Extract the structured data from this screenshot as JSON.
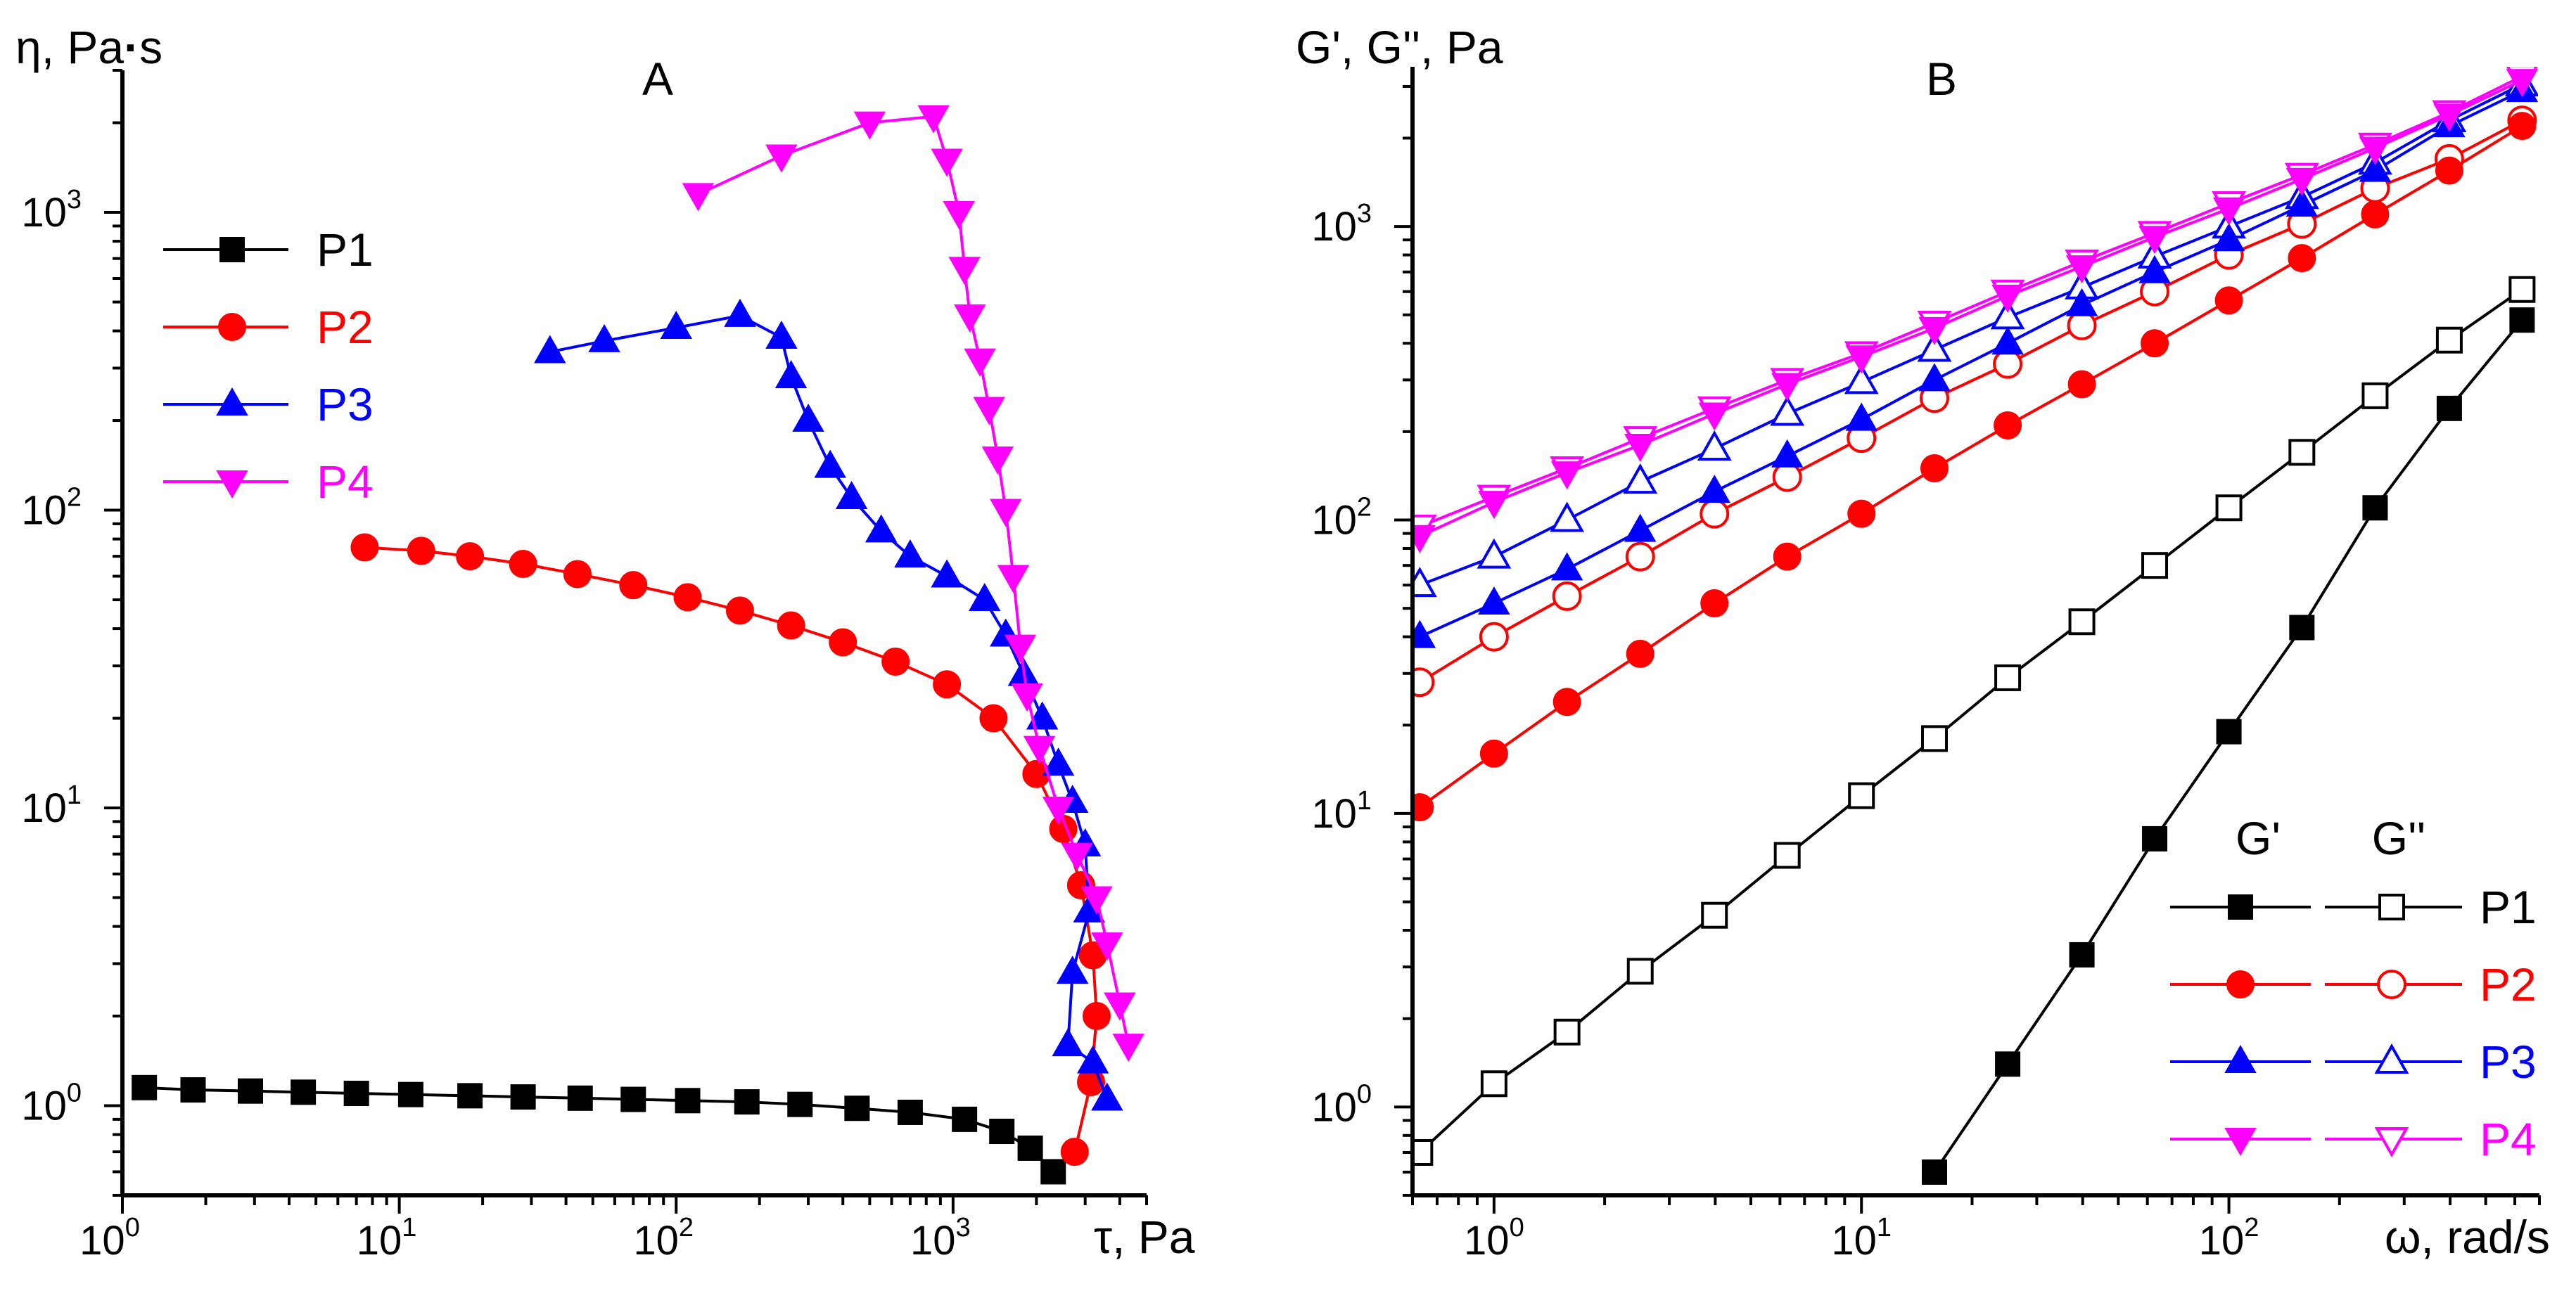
{
  "chart_data": [
    {
      "panel": "A",
      "type": "line",
      "xscale": "log",
      "yscale": "log",
      "xlabel": "τ, Pa",
      "ylabel": "η, Pa·s",
      "xlim": [
        1,
        5000
      ],
      "ylim": [
        0.5,
        3000
      ],
      "xtick_labels": [
        {
          "base": "10",
          "exp": "0"
        },
        {
          "base": "10",
          "exp": "1"
        },
        {
          "base": "10",
          "exp": "2"
        },
        {
          "base": "10",
          "exp": "3"
        }
      ],
      "ytick_labels": [
        {
          "base": "10",
          "exp": "0"
        },
        {
          "base": "10",
          "exp": "1"
        },
        {
          "base": "10",
          "exp": "2"
        },
        {
          "base": "10",
          "exp": "3"
        }
      ],
      "legend_position": "upper-left",
      "series": [
        {
          "name": "P1",
          "color": "#000000",
          "marker": "square",
          "x": [
            1.2,
            1.8,
            2.9,
            4.5,
            7,
            11,
            18,
            28,
            45,
            70,
            110,
            180,
            280,
            450,
            700,
            1100,
            1500,
            1900,
            2300
          ],
          "y": [
            1.15,
            1.13,
            1.12,
            1.11,
            1.1,
            1.09,
            1.08,
            1.07,
            1.06,
            1.05,
            1.04,
            1.03,
            1.01,
            0.98,
            0.95,
            0.9,
            0.82,
            0.72,
            0.6
          ]
        },
        {
          "name": "P2",
          "color": "#ff0000",
          "marker": "circle",
          "x": [
            7.5,
            12,
            18,
            28,
            44,
            70,
            110,
            170,
            260,
            400,
            620,
            950,
            1400,
            2000,
            2500,
            2900,
            3200,
            3300,
            3150,
            2750
          ],
          "y": [
            75,
            73,
            70,
            66,
            61,
            56,
            51,
            46,
            41,
            36,
            31,
            26,
            20,
            13,
            8.5,
            5.5,
            3.2,
            2.0,
            1.2,
            0.7
          ]
        },
        {
          "name": "P3",
          "color": "#0000ff",
          "marker": "triangle-up",
          "x": [
            35,
            55,
            100,
            170,
            240,
            260,
            300,
            360,
            430,
            550,
            700,
            950,
            1300,
            1550,
            1800,
            2100,
            2400,
            2700,
            3000,
            3100,
            2700,
            2600,
            3200,
            3600
          ],
          "y": [
            340,
            370,
            410,
            450,
            380,
            280,
            200,
            140,
            110,
            85,
            70,
            60,
            50,
            38,
            28,
            20,
            14,
            10.5,
            7.5,
            4.5,
            2.8,
            1.6,
            1.4,
            1.05
          ]
        },
        {
          "name": "P4",
          "color": "#ff00ff",
          "marker": "triangle-down",
          "x": [
            120,
            240,
            500,
            850,
            950,
            1050,
            1100,
            1150,
            1250,
            1350,
            1450,
            1550,
            1650,
            1750,
            1850,
            2050,
            2400,
            2800,
            3300,
            3600,
            4000,
            4300
          ],
          "y": [
            1150,
            1550,
            2000,
            2100,
            1500,
            1000,
            650,
            450,
            320,
            220,
            150,
            100,
            60,
            35,
            24,
            16,
            10,
            7,
            5,
            3.5,
            2.2,
            1.6
          ]
        }
      ]
    },
    {
      "panel": "B",
      "type": "line",
      "xscale": "log",
      "yscale": "log",
      "xlabel": "ω, rad/s",
      "ylabel": "G', G'', Pa",
      "xlim": [
        0.6,
        700
      ],
      "ylim": [
        0.5,
        3500
      ],
      "xtick_labels": [
        {
          "base": "10",
          "exp": "0"
        },
        {
          "base": "10",
          "exp": "1"
        },
        {
          "base": "10",
          "exp": "2"
        }
      ],
      "ytick_labels": [
        {
          "base": "10",
          "exp": "0"
        },
        {
          "base": "10",
          "exp": "1"
        },
        {
          "base": "10",
          "exp": "2"
        },
        {
          "base": "10",
          "exp": "3"
        }
      ],
      "x": [
        0.628,
        1.0,
        1.58,
        2.5,
        3.98,
        6.28,
        10,
        15.8,
        25,
        39.8,
        62.8,
        100,
        158,
        250,
        398,
        628
      ],
      "legend_position": "lower-right",
      "legend_headers": [
        "G'",
        "G''"
      ],
      "series": [
        {
          "name": "P1",
          "color": "#000000",
          "marker": "square",
          "G_prime": [
            null,
            null,
            null,
            null,
            null,
            null,
            null,
            0.6,
            1.4,
            3.3,
            8.2,
            19,
            43,
            110,
            240,
            480
          ],
          "G_double_prime": [
            0.7,
            1.2,
            1.8,
            2.9,
            4.5,
            7.2,
            11.5,
            18,
            29,
            45,
            70,
            110,
            170,
            265,
            410,
            610
          ]
        },
        {
          "name": "P2",
          "color": "#ff0000",
          "marker": "circle",
          "G_prime": [
            10.5,
            16,
            24,
            35,
            52,
            75,
            105,
            150,
            210,
            290,
            400,
            560,
            780,
            1100,
            1550,
            2200
          ],
          "G_double_prime": [
            28,
            40,
            55,
            75,
            105,
            140,
            190,
            260,
            340,
            460,
            600,
            800,
            1020,
            1350,
            1700,
            2300
          ]
        },
        {
          "name": "P3",
          "color": "#0000ff",
          "marker": "triangle-up",
          "G_prime": [
            40,
            52,
            68,
            92,
            125,
            165,
            220,
            300,
            400,
            540,
            700,
            900,
            1180,
            1550,
            2200,
            2900
          ],
          "G_double_prime": [
            60,
            75,
            100,
            135,
            175,
            230,
            295,
            380,
            490,
            620,
            790,
            1000,
            1260,
            1650,
            2300,
            3050
          ]
        },
        {
          "name": "P4",
          "color": "#ff00ff",
          "marker": "triangle-down",
          "G_prime": [
            88,
            115,
            145,
            180,
            230,
            290,
            360,
            450,
            580,
            730,
            920,
            1150,
            1450,
            1850,
            2400,
            3150
          ],
          "G_double_prime": [
            95,
            120,
            150,
            190,
            240,
            300,
            370,
            470,
            600,
            760,
            950,
            1200,
            1500,
            1900,
            2450,
            3250
          ]
        }
      ]
    }
  ],
  "panels": {
    "a": {
      "label": "A",
      "ylabel_prefix": "η, Pa",
      "ylabel_dot": "·",
      "ylabel_suffix": "s",
      "xlabel": "τ, Pa"
    },
    "b": {
      "label": "B",
      "ylabel": "G', G'', Pa",
      "xlabel": "ω, rad/s"
    }
  }
}
